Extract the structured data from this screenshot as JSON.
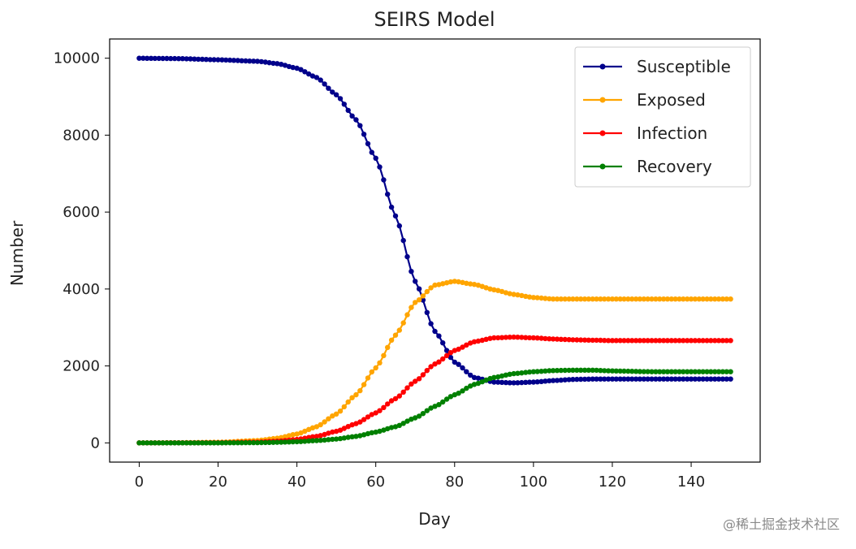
{
  "watermark": "@稀土掘金技术社区",
  "chart_data": {
    "type": "line",
    "title": "SEIRS Model",
    "xlabel": "Day",
    "ylabel": "Number",
    "xlim": [
      -7.5,
      157.5
    ],
    "ylim": [
      -500,
      10500
    ],
    "xticks": [
      0,
      20,
      40,
      60,
      80,
      100,
      120,
      140
    ],
    "yticks": [
      0,
      2000,
      4000,
      6000,
      8000,
      10000
    ],
    "legend": "top-right",
    "grid": false,
    "x": [
      0,
      10,
      20,
      30,
      35,
      40,
      45,
      50,
      55,
      60,
      65,
      70,
      75,
      80,
      85,
      90,
      95,
      100,
      105,
      110,
      115,
      120,
      130,
      140,
      150
    ],
    "series": [
      {
        "name": "Susceptible",
        "color": "#00008b",
        "values": [
          10000,
          9990,
          9960,
          9920,
          9860,
          9740,
          9500,
          9050,
          8400,
          7400,
          5900,
          4200,
          2900,
          2100,
          1700,
          1580,
          1560,
          1580,
          1620,
          1650,
          1660,
          1660,
          1660,
          1660,
          1660
        ]
      },
      {
        "name": "Exposed",
        "color": "#ffa500",
        "values": [
          0,
          5,
          15,
          60,
          120,
          230,
          420,
          750,
          1250,
          1950,
          2800,
          3650,
          4100,
          4200,
          4120,
          3980,
          3860,
          3780,
          3740,
          3740,
          3740,
          3740,
          3740,
          3740,
          3740
        ]
      },
      {
        "name": "Infection",
        "color": "#ff0000",
        "values": [
          0,
          2,
          5,
          20,
          45,
          90,
          170,
          300,
          500,
          780,
          1150,
          1600,
          2050,
          2400,
          2630,
          2730,
          2750,
          2730,
          2700,
          2680,
          2670,
          2660,
          2660,
          2660,
          2660
        ]
      },
      {
        "name": "Recovery",
        "color": "#008000",
        "values": [
          0,
          0,
          1,
          5,
          15,
          30,
          60,
          100,
          170,
          280,
          420,
          650,
          950,
          1250,
          1520,
          1700,
          1800,
          1850,
          1880,
          1890,
          1890,
          1870,
          1850,
          1850,
          1850
        ]
      }
    ]
  }
}
